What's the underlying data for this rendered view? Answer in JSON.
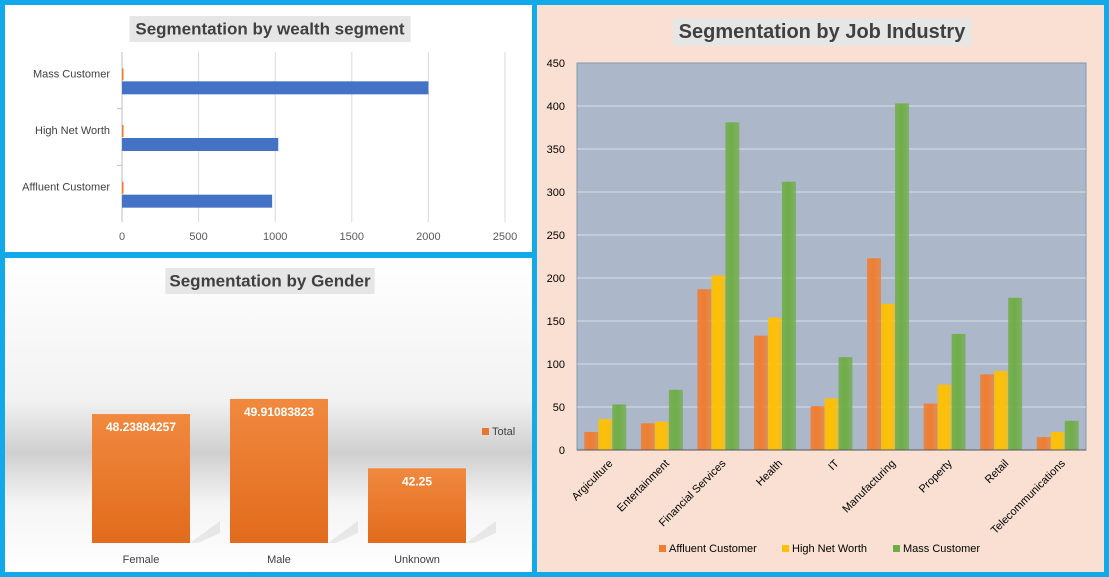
{
  "chart_data": [
    {
      "type": "bar",
      "orientation": "horizontal",
      "title": "Segmentation by wealth segment",
      "categories": [
        "Mass Customer",
        "High Net Worth",
        "Affluent Customer"
      ],
      "series": [
        {
          "values": [
            2000,
            1020,
            980
          ],
          "color": "#4472c4"
        },
        {
          "values": [
            10,
            10,
            10
          ],
          "color": "#ed7d31"
        }
      ],
      "xlim": [
        0,
        2500
      ],
      "xticks": [
        "0",
        "500",
        "1000",
        "1500",
        "2000",
        "2500"
      ],
      "grid": true
    },
    {
      "type": "bar",
      "title": "Segmentation by Gender",
      "categories": [
        "Female",
        "Male",
        "Unknown"
      ],
      "series": [
        {
          "name": "Total",
          "values": [
            48.23884257,
            49.91083823,
            42.25
          ],
          "labels": [
            "48.23884257",
            "49.91083823",
            "42.25"
          ],
          "color": "#e8772e"
        }
      ],
      "ylim": [
        34,
        52
      ],
      "legend": "right"
    },
    {
      "type": "bar",
      "title": "Segmentation by Job Industry",
      "categories": [
        "Argiculture",
        "Entertainment",
        "Financial Services",
        "Health",
        "IT",
        "Manufacturing",
        "Property",
        "Retail",
        "Telecommunications"
      ],
      "series": [
        {
          "name": "Affluent Customer",
          "values": [
            21,
            31,
            187,
            133,
            51,
            223,
            54,
            88,
            15
          ],
          "color": "#f07d30"
        },
        {
          "name": "High Net Worth",
          "values": [
            36,
            33,
            203,
            154,
            60,
            170,
            76,
            92,
            21
          ],
          "color": "#ffc000"
        },
        {
          "name": "Mass Customer",
          "values": [
            53,
            70,
            381,
            312,
            108,
            403,
            135,
            177,
            34
          ],
          "color": "#70ad47"
        }
      ],
      "ylim": [
        0,
        450
      ],
      "yticks": [
        "0",
        "50",
        "100",
        "150",
        "200",
        "250",
        "300",
        "350",
        "400",
        "450"
      ],
      "grid": true,
      "legend": "bottom"
    }
  ]
}
